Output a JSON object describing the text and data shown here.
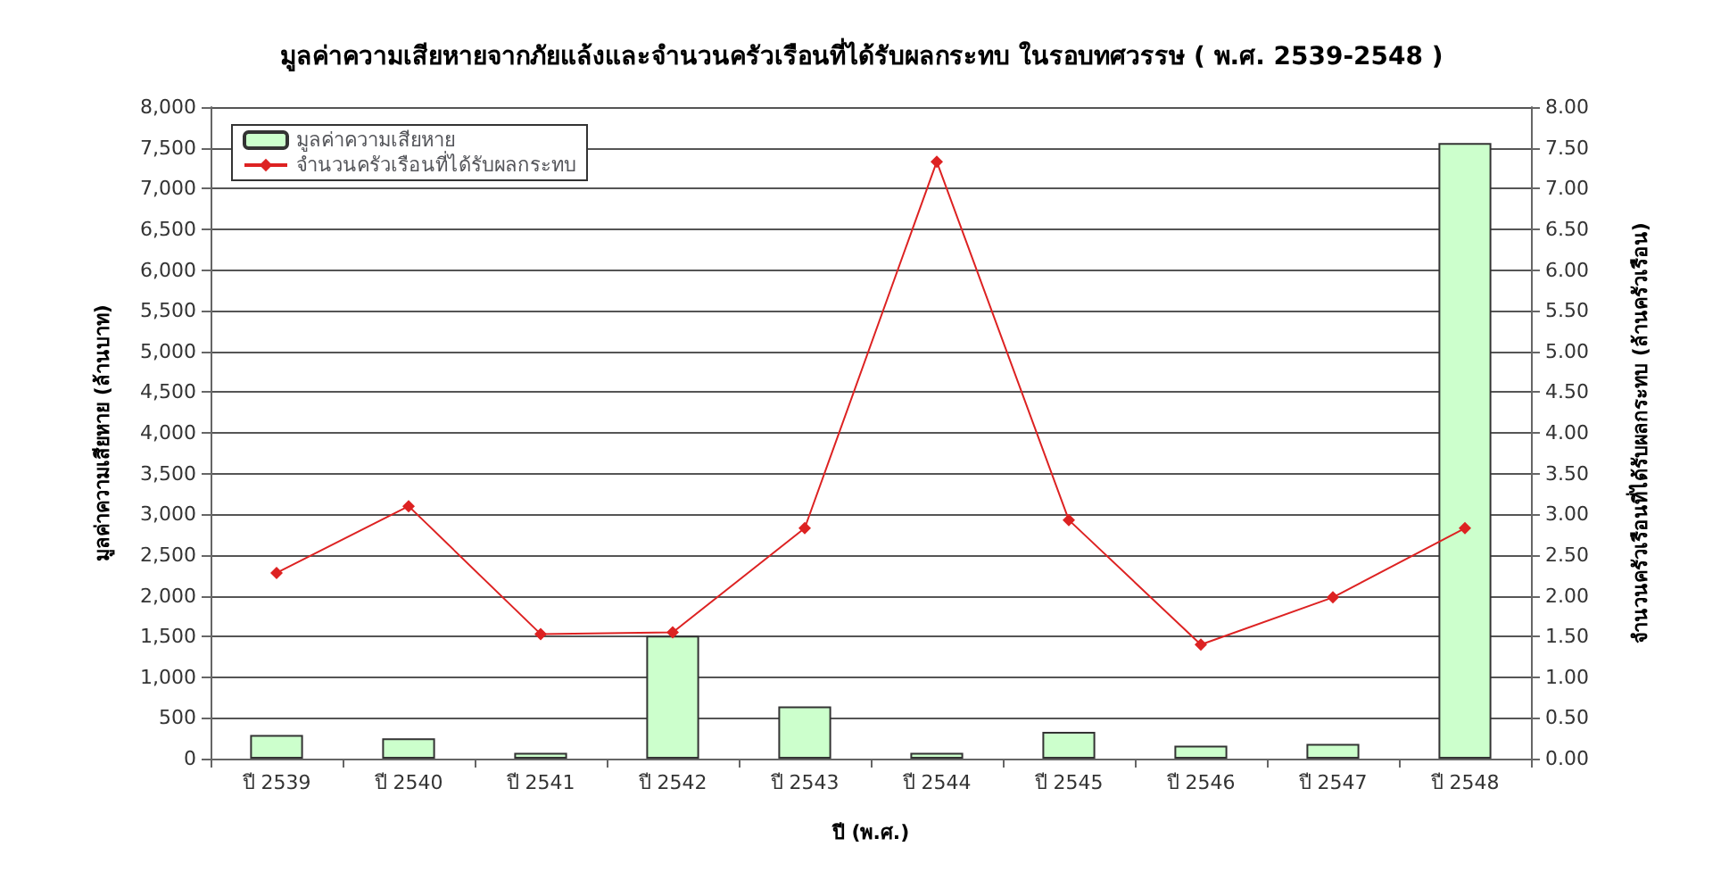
{
  "chart_data": {
    "type": "bar",
    "title": "มูลค่าความเสียหายจากภัยแล้งและจำนวนครัวเรือนที่ได้รับผลกระทบ ในรอบทศวรรษ ( พ.ศ. 2539-2548 )",
    "xlabel": "ปี (พ.ศ.)",
    "ylabel": "มูลค่าความเสียหาย (ล้านบาท)",
    "y2label": "จำนวนครัวเรือนที่ได้รับผลกระทบ (ล้านครัวเรือน)",
    "categories": [
      "ปี 2539",
      "ปี 2540",
      "ปี 2541",
      "ปี 2542",
      "ปี 2543",
      "ปี 2544",
      "ปี 2545",
      "ปี 2546",
      "ปี 2547",
      "ปี 2548"
    ],
    "series": [
      {
        "name": "มูลค่าความเสียหาย",
        "color": "#ccffcc",
        "values": [
          290,
          250,
          70,
          1510,
          640,
          70,
          330,
          160,
          180,
          7560
        ]
      },
      {
        "name": "จำนวนครัวเรือนที่ได้รับผลกระทบ",
        "type": "line",
        "axis": "y2",
        "color": "#dd2222",
        "values": [
          2.28,
          3.1,
          1.53,
          1.55,
          2.83,
          7.33,
          2.93,
          1.4,
          1.98,
          2.83
        ]
      }
    ],
    "ylim": [
      0,
      8000
    ],
    "yticks": [
      0,
      {
        "value": 500,
        "label": "500"
      },
      {
        "value": 1000,
        "label": "1,000"
      },
      {
        "value": 1500,
        "label": "1,500"
      },
      {
        "value": 2000,
        "label": "2,000"
      },
      {
        "value": 2500,
        "label": "2,500"
      },
      {
        "value": 3000,
        "label": "3,000"
      },
      {
        "value": 3500,
        "label": "3,500"
      },
      {
        "value": 4000,
        "label": "4,000"
      },
      {
        "value": 4500,
        "label": "4,500"
      },
      {
        "value": 5000,
        "label": "5,000"
      },
      {
        "value": 5500,
        "label": "5,500"
      },
      {
        "value": 6000,
        "label": "6,000"
      },
      {
        "value": 6500,
        "label": "6,500"
      },
      {
        "value": 7000,
        "label": "7,000"
      },
      {
        "value": 7500,
        "label": "7,500"
      },
      {
        "value": 8000,
        "label": "8,000"
      }
    ],
    "y2lim": [
      0,
      8
    ],
    "y2ticks": [
      {
        "value": 0,
        "label": "0.00"
      },
      {
        "value": 0.5,
        "label": "0.50"
      },
      {
        "value": 1,
        "label": "1.00"
      },
      {
        "value": 1.5,
        "label": "1.50"
      },
      {
        "value": 2,
        "label": "2.00"
      },
      {
        "value": 2.5,
        "label": "2.50"
      },
      {
        "value": 3,
        "label": "3.00"
      },
      {
        "value": 3.5,
        "label": "3.50"
      },
      {
        "value": 4,
        "label": "4.00"
      },
      {
        "value": 4.5,
        "label": "4.50"
      },
      {
        "value": 5,
        "label": "5.00"
      },
      {
        "value": 5.5,
        "label": "5.50"
      },
      {
        "value": 6,
        "label": "6.00"
      },
      {
        "value": 6.5,
        "label": "6.50"
      },
      {
        "value": 7,
        "label": "7.00"
      },
      {
        "value": 7.5,
        "label": "7.50"
      },
      {
        "value": 8,
        "label": "8.00"
      }
    ],
    "grid": "y",
    "legend": "top left",
    "marker": "diamond",
    "line_style": "solid"
  }
}
